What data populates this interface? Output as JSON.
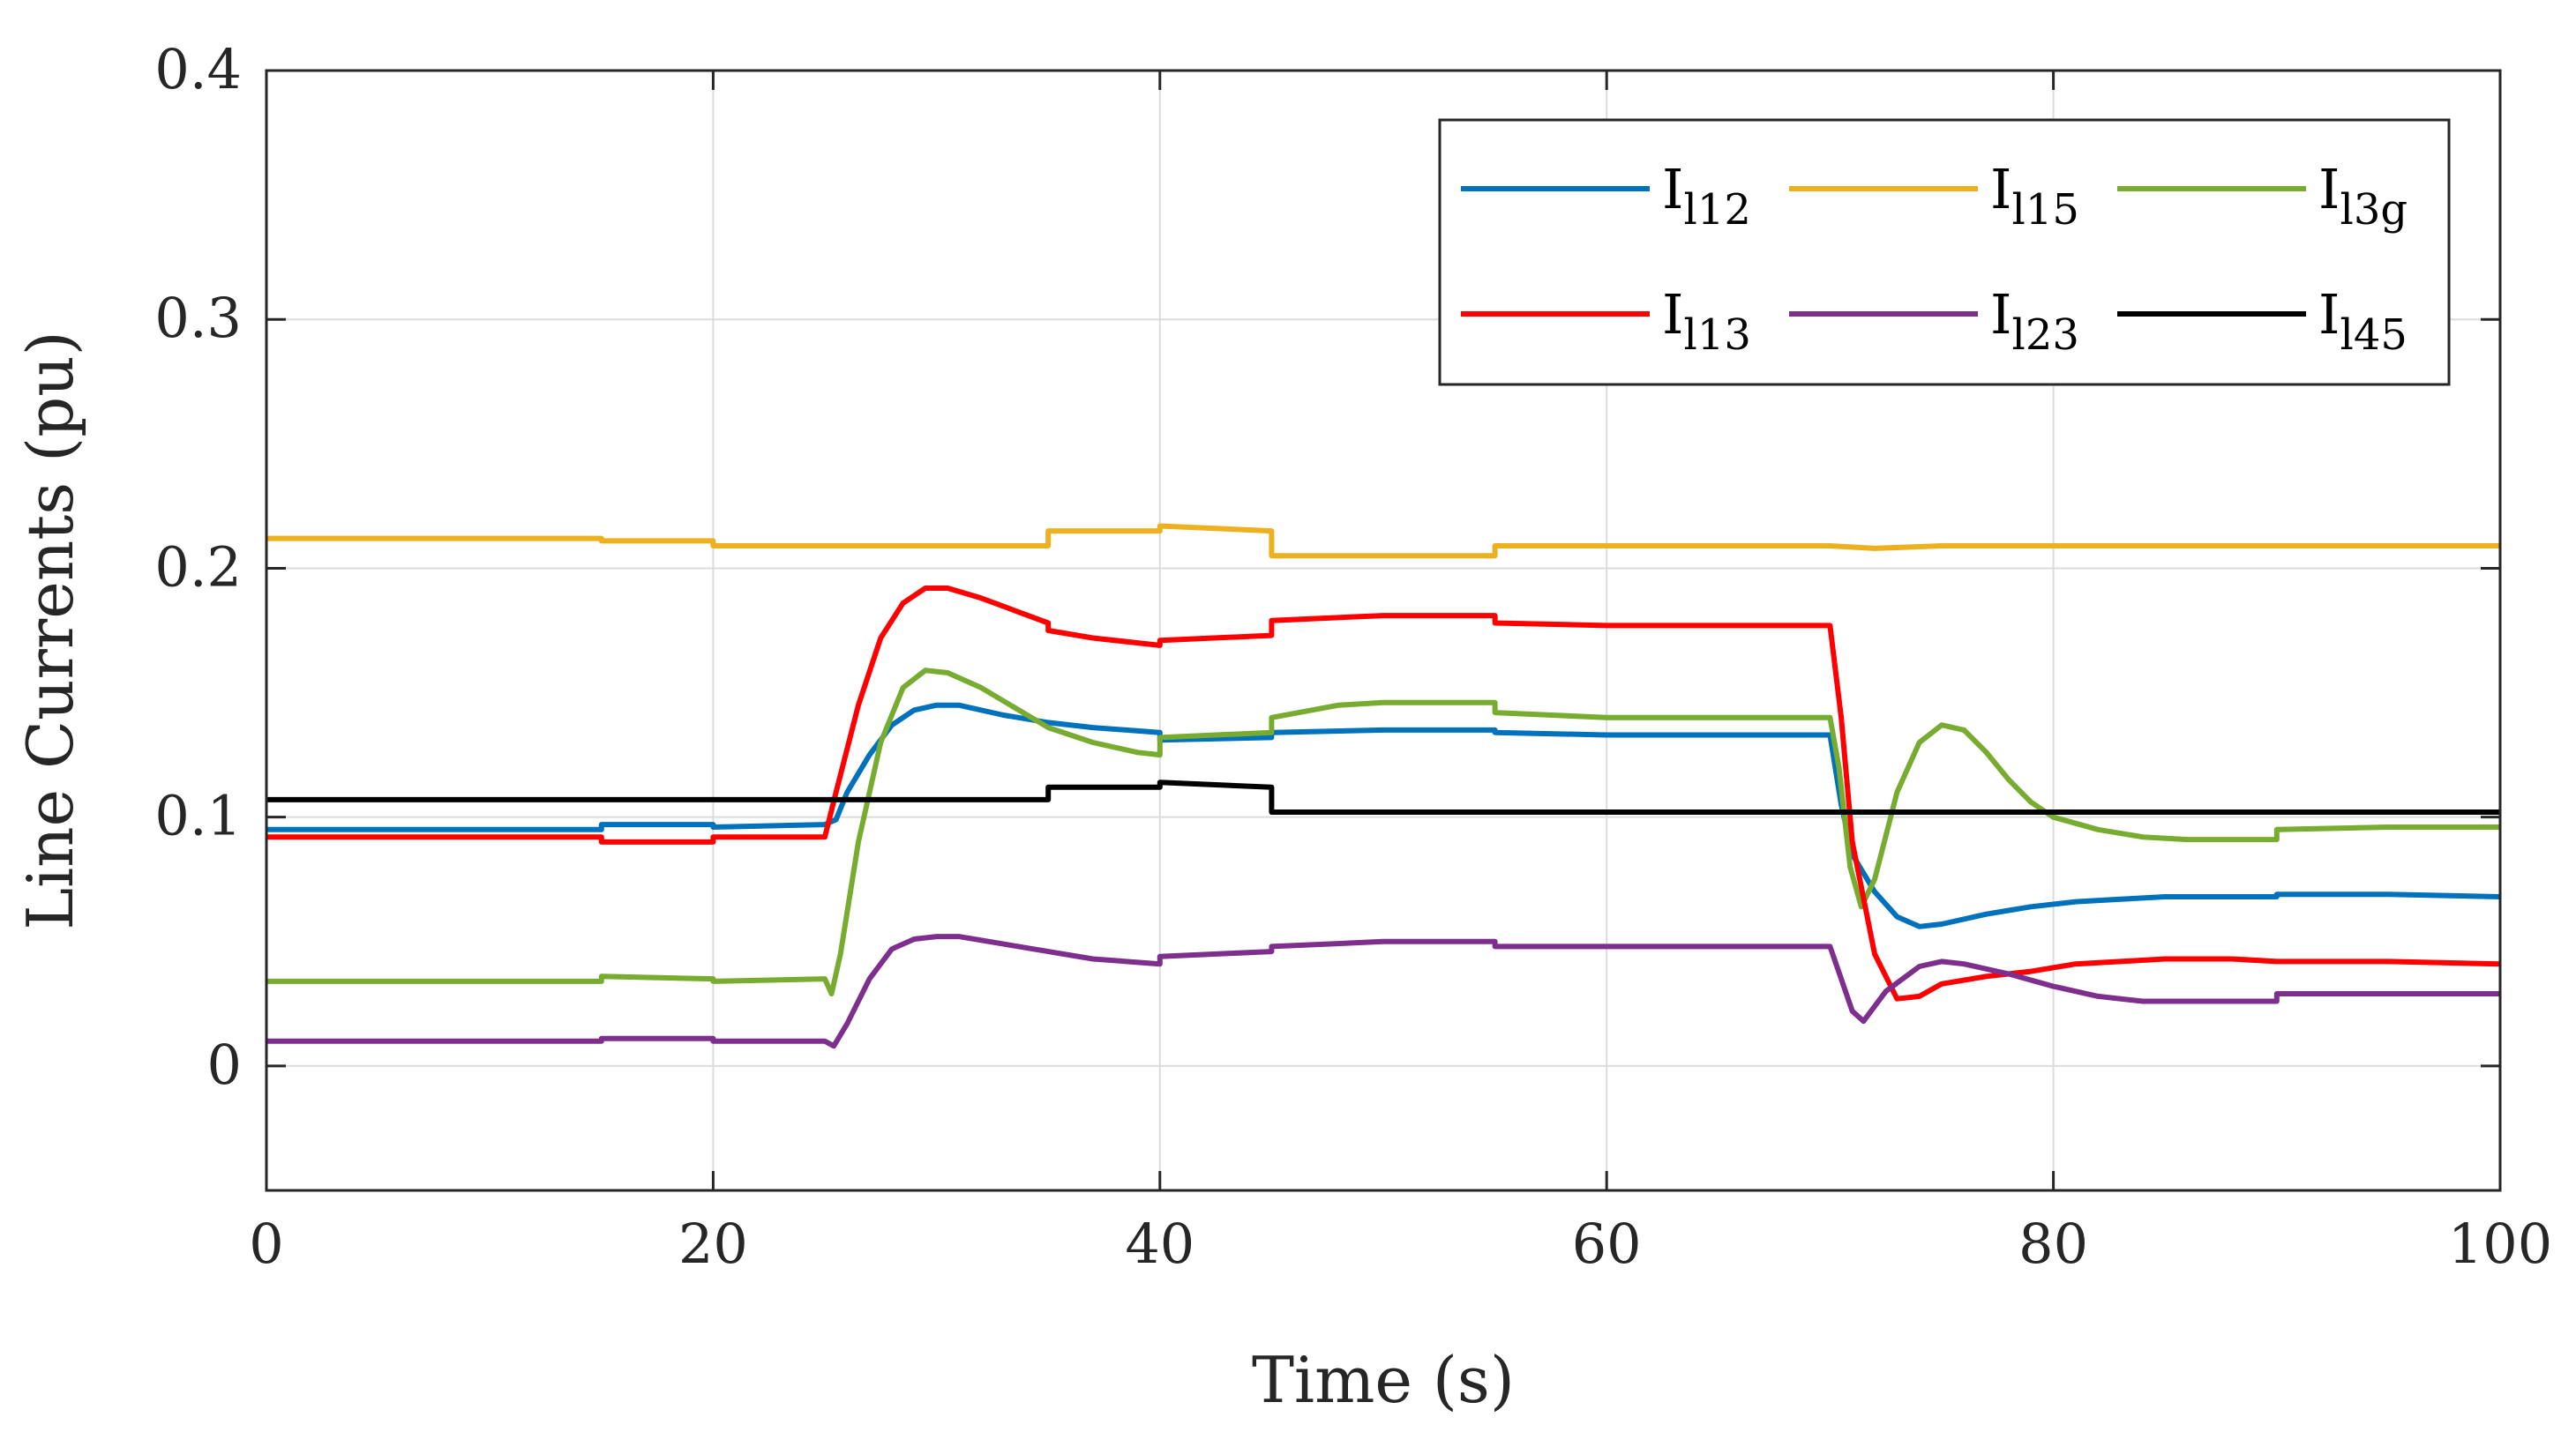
{
  "chart_data": {
    "type": "line",
    "title": "",
    "xlabel": "Time (s)",
    "ylabel": "Line Currents (pu)",
    "xlim": [
      0,
      100
    ],
    "ylim": [
      -0.05,
      0.4
    ],
    "xticks": [
      0,
      20,
      40,
      60,
      80,
      100
    ],
    "xtick_labels": [
      "0",
      "20",
      "40",
      "60",
      "80",
      "100"
    ],
    "yticks": [
      0,
      0.1,
      0.2,
      0.3,
      0.4
    ],
    "ytick_labels": [
      "0",
      "0.1",
      "0.2",
      "0.3",
      "0.4"
    ],
    "grid": true,
    "legend_position": "top-right",
    "series": [
      {
        "name": "I_l12",
        "label_main": "I",
        "label_sub": "l12",
        "color": "#0072BD",
        "points": [
          [
            0,
            0.095
          ],
          [
            15,
            0.095
          ],
          [
            15,
            0.097
          ],
          [
            20,
            0.097
          ],
          [
            20,
            0.096
          ],
          [
            25,
            0.097
          ],
          [
            25.5,
            0.099
          ],
          [
            26,
            0.11
          ],
          [
            27,
            0.125
          ],
          [
            28,
            0.137
          ],
          [
            29,
            0.143
          ],
          [
            30,
            0.145
          ],
          [
            31,
            0.145
          ],
          [
            33,
            0.141
          ],
          [
            35,
            0.138
          ],
          [
            37,
            0.136
          ],
          [
            40,
            0.134
          ],
          [
            40,
            0.131
          ],
          [
            45,
            0.132
          ],
          [
            45,
            0.134
          ],
          [
            50,
            0.135
          ],
          [
            55,
            0.135
          ],
          [
            55,
            0.134
          ],
          [
            60,
            0.133
          ],
          [
            65,
            0.133
          ],
          [
            70,
            0.133
          ],
          [
            70.5,
            0.105
          ],
          [
            71,
            0.085
          ],
          [
            72,
            0.07
          ],
          [
            73,
            0.06
          ],
          [
            74,
            0.056
          ],
          [
            75,
            0.057
          ],
          [
            77,
            0.061
          ],
          [
            79,
            0.064
          ],
          [
            81,
            0.066
          ],
          [
            83,
            0.067
          ],
          [
            85,
            0.068
          ],
          [
            88,
            0.068
          ],
          [
            90,
            0.068
          ],
          [
            90,
            0.069
          ],
          [
            95,
            0.069
          ],
          [
            100,
            0.068
          ]
        ]
      },
      {
        "name": "I_l15",
        "label_main": "I",
        "label_sub": "l15",
        "color": "#EDB120",
        "points": [
          [
            0,
            0.212
          ],
          [
            15,
            0.212
          ],
          [
            15,
            0.211
          ],
          [
            20,
            0.211
          ],
          [
            20,
            0.209
          ],
          [
            25,
            0.209
          ],
          [
            30,
            0.209
          ],
          [
            35,
            0.209
          ],
          [
            35,
            0.215
          ],
          [
            40,
            0.215
          ],
          [
            40,
            0.217
          ],
          [
            45,
            0.215
          ],
          [
            45,
            0.205
          ],
          [
            50,
            0.205
          ],
          [
            55,
            0.205
          ],
          [
            55,
            0.209
          ],
          [
            60,
            0.209
          ],
          [
            65,
            0.209
          ],
          [
            70,
            0.209
          ],
          [
            72,
            0.208
          ],
          [
            75,
            0.209
          ],
          [
            80,
            0.209
          ],
          [
            90,
            0.209
          ],
          [
            100,
            0.209
          ]
        ]
      },
      {
        "name": "I_l3g",
        "label_main": "I",
        "label_sub": "l3g",
        "color": "#77AC30",
        "points": [
          [
            0,
            0.034
          ],
          [
            15,
            0.034
          ],
          [
            15,
            0.036
          ],
          [
            20,
            0.035
          ],
          [
            20,
            0.034
          ],
          [
            25,
            0.035
          ],
          [
            25.3,
            0.029
          ],
          [
            25.7,
            0.045
          ],
          [
            26.5,
            0.09
          ],
          [
            27.5,
            0.13
          ],
          [
            28.5,
            0.152
          ],
          [
            29.5,
            0.159
          ],
          [
            30.5,
            0.158
          ],
          [
            32,
            0.152
          ],
          [
            33.5,
            0.144
          ],
          [
            35,
            0.136
          ],
          [
            37,
            0.13
          ],
          [
            39,
            0.126
          ],
          [
            40,
            0.125
          ],
          [
            40,
            0.132
          ],
          [
            45,
            0.134
          ],
          [
            45,
            0.14
          ],
          [
            48,
            0.145
          ],
          [
            50,
            0.146
          ],
          [
            55,
            0.146
          ],
          [
            55,
            0.142
          ],
          [
            60,
            0.14
          ],
          [
            65,
            0.14
          ],
          [
            70,
            0.14
          ],
          [
            70.4,
            0.12
          ],
          [
            70.9,
            0.08
          ],
          [
            71.4,
            0.064
          ],
          [
            72,
            0.075
          ],
          [
            73,
            0.11
          ],
          [
            74,
            0.13
          ],
          [
            75,
            0.137
          ],
          [
            76,
            0.135
          ],
          [
            77,
            0.126
          ],
          [
            78,
            0.115
          ],
          [
            79,
            0.106
          ],
          [
            80,
            0.1
          ],
          [
            82,
            0.095
          ],
          [
            84,
            0.092
          ],
          [
            86,
            0.091
          ],
          [
            88,
            0.091
          ],
          [
            90,
            0.091
          ],
          [
            90,
            0.095
          ],
          [
            95,
            0.096
          ],
          [
            100,
            0.096
          ]
        ]
      },
      {
        "name": "I_l13",
        "label_main": "I",
        "label_sub": "l13",
        "color": "#FF0000",
        "points": [
          [
            0,
            0.092
          ],
          [
            15,
            0.092
          ],
          [
            15,
            0.09
          ],
          [
            20,
            0.09
          ],
          [
            20,
            0.092
          ],
          [
            25,
            0.092
          ],
          [
            25.5,
            0.11
          ],
          [
            26.5,
            0.145
          ],
          [
            27.5,
            0.172
          ],
          [
            28.5,
            0.186
          ],
          [
            29.5,
            0.192
          ],
          [
            30.5,
            0.192
          ],
          [
            32,
            0.188
          ],
          [
            33.5,
            0.183
          ],
          [
            35,
            0.178
          ],
          [
            35,
            0.175
          ],
          [
            37,
            0.172
          ],
          [
            40,
            0.169
          ],
          [
            40,
            0.171
          ],
          [
            45,
            0.173
          ],
          [
            45,
            0.179
          ],
          [
            50,
            0.181
          ],
          [
            55,
            0.181
          ],
          [
            55,
            0.178
          ],
          [
            60,
            0.177
          ],
          [
            65,
            0.177
          ],
          [
            70,
            0.177
          ],
          [
            70.5,
            0.14
          ],
          [
            71,
            0.09
          ],
          [
            72,
            0.045
          ],
          [
            73,
            0.027
          ],
          [
            74,
            0.028
          ],
          [
            75,
            0.033
          ],
          [
            77,
            0.036
          ],
          [
            79,
            0.038
          ],
          [
            81,
            0.041
          ],
          [
            83,
            0.042
          ],
          [
            85,
            0.043
          ],
          [
            88,
            0.043
          ],
          [
            90,
            0.042
          ],
          [
            95,
            0.042
          ],
          [
            100,
            0.041
          ]
        ]
      },
      {
        "name": "I_l23",
        "label_main": "I",
        "label_sub": "l23",
        "color": "#7E2F8E",
        "points": [
          [
            0,
            0.01
          ],
          [
            15,
            0.01
          ],
          [
            15,
            0.011
          ],
          [
            20,
            0.011
          ],
          [
            20,
            0.01
          ],
          [
            25,
            0.01
          ],
          [
            25.4,
            0.008
          ],
          [
            26,
            0.017
          ],
          [
            27,
            0.035
          ],
          [
            28,
            0.047
          ],
          [
            29,
            0.051
          ],
          [
            30,
            0.052
          ],
          [
            31,
            0.052
          ],
          [
            33,
            0.049
          ],
          [
            35,
            0.046
          ],
          [
            37,
            0.043
          ],
          [
            40,
            0.041
          ],
          [
            40,
            0.044
          ],
          [
            45,
            0.046
          ],
          [
            45,
            0.048
          ],
          [
            50,
            0.05
          ],
          [
            55,
            0.05
          ],
          [
            55,
            0.048
          ],
          [
            60,
            0.048
          ],
          [
            65,
            0.048
          ],
          [
            70,
            0.048
          ],
          [
            70.5,
            0.035
          ],
          [
            71,
            0.022
          ],
          [
            71.5,
            0.018
          ],
          [
            72.5,
            0.03
          ],
          [
            74,
            0.04
          ],
          [
            75,
            0.042
          ],
          [
            76,
            0.041
          ],
          [
            78,
            0.037
          ],
          [
            80,
            0.032
          ],
          [
            82,
            0.028
          ],
          [
            84,
            0.026
          ],
          [
            86,
            0.026
          ],
          [
            88,
            0.026
          ],
          [
            90,
            0.026
          ],
          [
            90,
            0.029
          ],
          [
            95,
            0.029
          ],
          [
            100,
            0.029
          ]
        ]
      },
      {
        "name": "I_l45",
        "label_main": "I",
        "label_sub": "l45",
        "color": "#000000",
        "points": [
          [
            0,
            0.107
          ],
          [
            15,
            0.107
          ],
          [
            20,
            0.107
          ],
          [
            25,
            0.107
          ],
          [
            30,
            0.107
          ],
          [
            35,
            0.107
          ],
          [
            35,
            0.112
          ],
          [
            40,
            0.112
          ],
          [
            40,
            0.114
          ],
          [
            45,
            0.112
          ],
          [
            45,
            0.102
          ],
          [
            50,
            0.102
          ],
          [
            55,
            0.102
          ],
          [
            60,
            0.102
          ],
          [
            65,
            0.102
          ],
          [
            70,
            0.102
          ],
          [
            72,
            0.102
          ],
          [
            75,
            0.102
          ],
          [
            80,
            0.102
          ],
          [
            90,
            0.102
          ],
          [
            100,
            0.102
          ]
        ]
      }
    ]
  }
}
